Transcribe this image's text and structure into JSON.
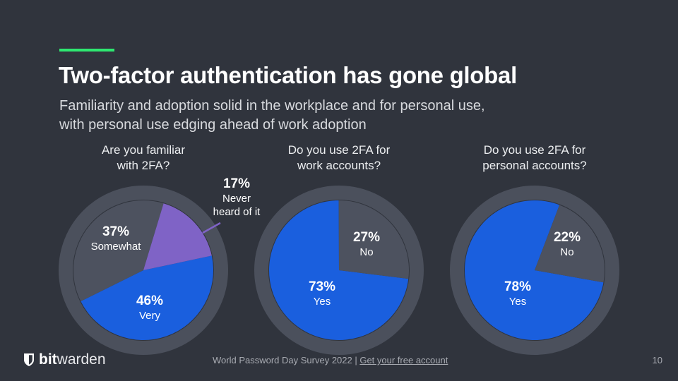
{
  "header": {
    "title": "Two-factor authentication has gone global",
    "subtitle_line1": "Familiarity and adoption solid in the workplace and for personal use,",
    "subtitle_line2": "with personal use edging ahead of work adoption",
    "accent_color": "#2ee871"
  },
  "questions": [
    {
      "line1": "Are you familiar",
      "line2": "with 2FA?"
    },
    {
      "line1": "Do you use 2FA for",
      "line2": "work accounts?"
    },
    {
      "line1": "Do you use 2FA for",
      "line2": "personal accounts?"
    }
  ],
  "labels": {
    "familiar": [
      {
        "pct": "46%",
        "cat": "Very"
      },
      {
        "pct": "37%",
        "cat": "Somewhat"
      },
      {
        "pct": "17%",
        "cat_line1": "Never",
        "cat_line2": "heard of it"
      }
    ],
    "work": [
      {
        "pct": "73%",
        "cat": "Yes"
      },
      {
        "pct": "27%",
        "cat": "No"
      }
    ],
    "personal": [
      {
        "pct": "78%",
        "cat": "Yes"
      },
      {
        "pct": "22%",
        "cat": "No"
      }
    ]
  },
  "colors": {
    "blue": "#1a5fde",
    "gray": "#4d525f",
    "purple": "#7f63c6",
    "ring": "#4b505c",
    "background": "#30343d"
  },
  "chart_data": [
    {
      "type": "pie",
      "title": "Are you familiar with 2FA?",
      "categories": [
        "Very",
        "Somewhat",
        "Never heard of it"
      ],
      "values": [
        46,
        37,
        17
      ],
      "colors": [
        "#1a5fde",
        "#4d525f",
        "#7f63c6"
      ]
    },
    {
      "type": "pie",
      "title": "Do you use 2FA for work accounts?",
      "categories": [
        "Yes",
        "No"
      ],
      "values": [
        73,
        27
      ],
      "colors": [
        "#1a5fde",
        "#4d525f"
      ]
    },
    {
      "type": "pie",
      "title": "Do you use 2FA for personal accounts?",
      "categories": [
        "Yes",
        "No"
      ],
      "values": [
        78,
        22
      ],
      "colors": [
        "#1a5fde",
        "#4d525f"
      ]
    }
  ],
  "footer": {
    "logo_bold": "bit",
    "logo_light": "warden",
    "source_text": "World Password Day Survey 2022 | ",
    "link_text": "Get your free account",
    "page_number": "10"
  }
}
